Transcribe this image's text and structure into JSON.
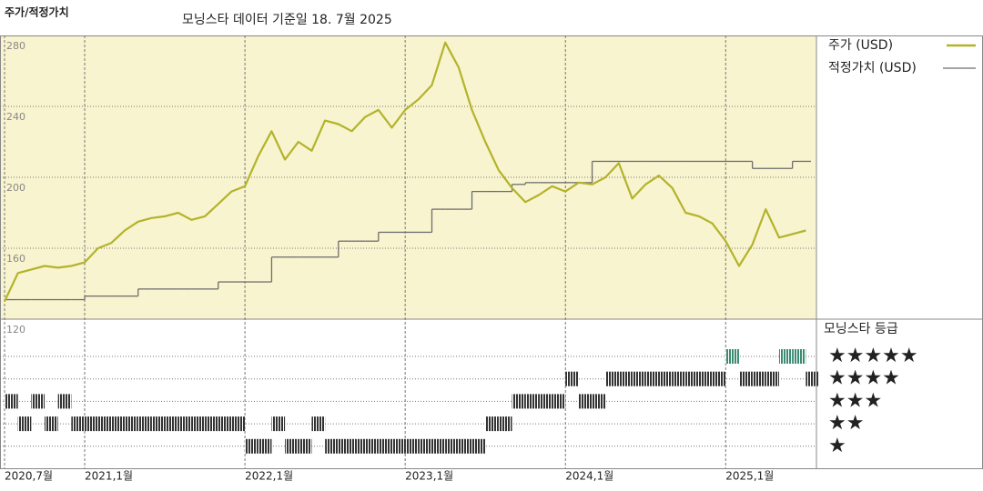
{
  "chart_data": {
    "type": "line",
    "title": "주가/적정가치",
    "subtitle": "모닝스타 데이터 기준일 18. 7월 2025",
    "x": [
      "2020-07",
      "2020-08",
      "2020-09",
      "2020-10",
      "2020-11",
      "2020-12",
      "2021-01",
      "2021-02",
      "2021-03",
      "2021-04",
      "2021-05",
      "2021-06",
      "2021-07",
      "2021-08",
      "2021-09",
      "2021-10",
      "2021-11",
      "2021-12",
      "2022-01",
      "2022-02",
      "2022-03",
      "2022-04",
      "2022-05",
      "2022-06",
      "2022-07",
      "2022-08",
      "2022-09",
      "2022-10",
      "2022-11",
      "2022-12",
      "2023-01",
      "2023-02",
      "2023-03",
      "2023-04",
      "2023-05",
      "2023-06",
      "2023-07",
      "2023-08",
      "2023-09",
      "2023-10",
      "2023-11",
      "2023-12",
      "2024-01",
      "2024-02",
      "2024-03",
      "2024-04",
      "2024-05",
      "2024-06",
      "2024-07",
      "2024-08",
      "2024-09",
      "2024-10",
      "2024-11",
      "2024-12",
      "2025-01",
      "2025-02",
      "2025-03",
      "2025-04",
      "2025-05",
      "2025-06",
      "2025-07"
    ],
    "series": [
      {
        "name": "주가 (USD)",
        "color": "#b3b32b",
        "values": [
          130,
          146,
          148,
          150,
          149,
          150,
          152,
          160,
          163,
          170,
          175,
          177,
          178,
          180,
          176,
          178,
          185,
          192,
          195,
          212,
          226,
          210,
          220,
          215,
          232,
          230,
          226,
          234,
          238,
          228,
          238,
          244,
          252,
          276,
          262,
          238,
          220,
          204,
          194,
          186,
          190,
          195,
          192,
          197,
          196,
          200,
          208,
          188,
          196,
          201,
          194,
          180,
          178,
          174,
          164,
          150,
          162,
          182,
          166,
          168,
          170
        ]
      },
      {
        "name": "적정가치 (USD)",
        "color": "#6e6e6e",
        "step": true,
        "values": [
          131,
          131,
          131,
          131,
          131,
          131,
          133,
          133,
          133,
          133,
          137,
          137,
          137,
          137,
          137,
          137,
          141,
          141,
          141,
          141,
          155,
          155,
          155,
          155,
          155,
          164,
          164,
          164,
          169,
          169,
          169,
          169,
          182,
          182,
          182,
          192,
          192,
          192,
          196,
          197,
          197,
          197,
          197,
          197,
          209,
          209,
          209,
          209,
          209,
          209,
          209,
          209,
          209,
          209,
          209,
          209,
          205,
          205,
          205,
          209,
          209
        ]
      }
    ],
    "xlim": [
      "2020-07",
      "2025-08"
    ],
    "xticks": [
      {
        "value": "2020-07",
        "label": "2020,7월"
      },
      {
        "value": "2021-01",
        "label": "2021,1월"
      },
      {
        "value": "2022-01",
        "label": "2022,1월"
      },
      {
        "value": "2023-01",
        "label": "2023,1월"
      },
      {
        "value": "2024-01",
        "label": "2024,1월"
      },
      {
        "value": "2025-01",
        "label": "2025,1월"
      }
    ],
    "ylim": [
      120,
      280
    ],
    "yticks": [
      120,
      160,
      200,
      240,
      280
    ],
    "grid": true,
    "rating": {
      "title": "모닝스타 등급",
      "levels": [
        "★★★★★",
        "★★★★",
        "★★★",
        "★★",
        "★"
      ],
      "color": "#333333",
      "top_color": "#3c8c74",
      "values": [
        3,
        2,
        3,
        2,
        3,
        2,
        2,
        2,
        2,
        2,
        2,
        2,
        2,
        2,
        2,
        2,
        2,
        2,
        1,
        1,
        2,
        1,
        1,
        2,
        1,
        1,
        1,
        1,
        1,
        1,
        1,
        1,
        1,
        1,
        1,
        1,
        2,
        2,
        3,
        3,
        3,
        3,
        4,
        3,
        3,
        4,
        4,
        4,
        4,
        4,
        4,
        4,
        4,
        4,
        5,
        4,
        4,
        4,
        5,
        5,
        4
      ]
    }
  }
}
